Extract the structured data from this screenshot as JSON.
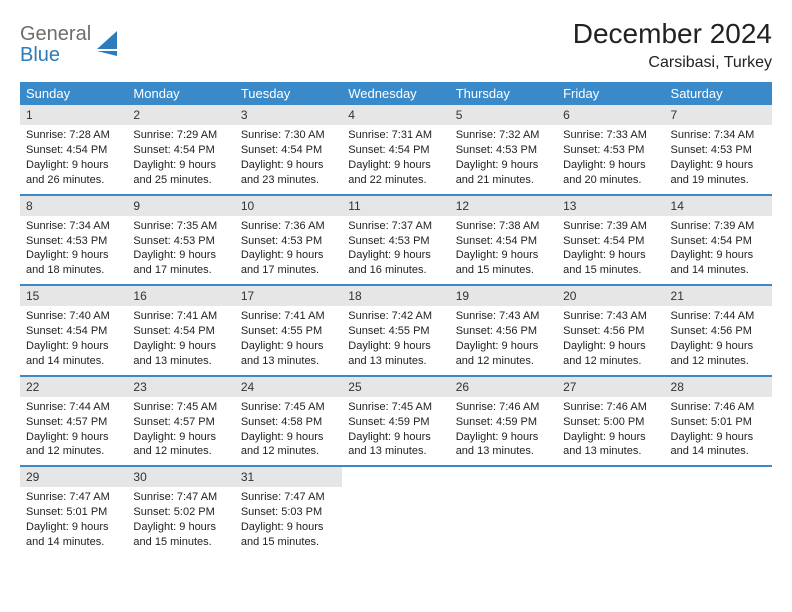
{
  "brand": {
    "word1": "General",
    "word2": "Blue"
  },
  "header": {
    "title": "December 2024",
    "location": "Carsibasi, Turkey"
  },
  "colors": {
    "header_bg": "#3a8aca",
    "header_fg": "#ffffff",
    "daynum_bg": "#e6e6e6",
    "row_divider": "#3a8aca",
    "logo_gray": "#6e6e6e",
    "logo_blue": "#2b7bbd",
    "page_bg": "#ffffff",
    "text": "#222222"
  },
  "weekdays": [
    "Sunday",
    "Monday",
    "Tuesday",
    "Wednesday",
    "Thursday",
    "Friday",
    "Saturday"
  ],
  "weeks": [
    [
      {
        "n": "1",
        "sr": "Sunrise: 7:28 AM",
        "ss": "Sunset: 4:54 PM",
        "d1": "Daylight: 9 hours",
        "d2": "and 26 minutes."
      },
      {
        "n": "2",
        "sr": "Sunrise: 7:29 AM",
        "ss": "Sunset: 4:54 PM",
        "d1": "Daylight: 9 hours",
        "d2": "and 25 minutes."
      },
      {
        "n": "3",
        "sr": "Sunrise: 7:30 AM",
        "ss": "Sunset: 4:54 PM",
        "d1": "Daylight: 9 hours",
        "d2": "and 23 minutes."
      },
      {
        "n": "4",
        "sr": "Sunrise: 7:31 AM",
        "ss": "Sunset: 4:54 PM",
        "d1": "Daylight: 9 hours",
        "d2": "and 22 minutes."
      },
      {
        "n": "5",
        "sr": "Sunrise: 7:32 AM",
        "ss": "Sunset: 4:53 PM",
        "d1": "Daylight: 9 hours",
        "d2": "and 21 minutes."
      },
      {
        "n": "6",
        "sr": "Sunrise: 7:33 AM",
        "ss": "Sunset: 4:53 PM",
        "d1": "Daylight: 9 hours",
        "d2": "and 20 minutes."
      },
      {
        "n": "7",
        "sr": "Sunrise: 7:34 AM",
        "ss": "Sunset: 4:53 PM",
        "d1": "Daylight: 9 hours",
        "d2": "and 19 minutes."
      }
    ],
    [
      {
        "n": "8",
        "sr": "Sunrise: 7:34 AM",
        "ss": "Sunset: 4:53 PM",
        "d1": "Daylight: 9 hours",
        "d2": "and 18 minutes."
      },
      {
        "n": "9",
        "sr": "Sunrise: 7:35 AM",
        "ss": "Sunset: 4:53 PM",
        "d1": "Daylight: 9 hours",
        "d2": "and 17 minutes."
      },
      {
        "n": "10",
        "sr": "Sunrise: 7:36 AM",
        "ss": "Sunset: 4:53 PM",
        "d1": "Daylight: 9 hours",
        "d2": "and 17 minutes."
      },
      {
        "n": "11",
        "sr": "Sunrise: 7:37 AM",
        "ss": "Sunset: 4:53 PM",
        "d1": "Daylight: 9 hours",
        "d2": "and 16 minutes."
      },
      {
        "n": "12",
        "sr": "Sunrise: 7:38 AM",
        "ss": "Sunset: 4:54 PM",
        "d1": "Daylight: 9 hours",
        "d2": "and 15 minutes."
      },
      {
        "n": "13",
        "sr": "Sunrise: 7:39 AM",
        "ss": "Sunset: 4:54 PM",
        "d1": "Daylight: 9 hours",
        "d2": "and 15 minutes."
      },
      {
        "n": "14",
        "sr": "Sunrise: 7:39 AM",
        "ss": "Sunset: 4:54 PM",
        "d1": "Daylight: 9 hours",
        "d2": "and 14 minutes."
      }
    ],
    [
      {
        "n": "15",
        "sr": "Sunrise: 7:40 AM",
        "ss": "Sunset: 4:54 PM",
        "d1": "Daylight: 9 hours",
        "d2": "and 14 minutes."
      },
      {
        "n": "16",
        "sr": "Sunrise: 7:41 AM",
        "ss": "Sunset: 4:54 PM",
        "d1": "Daylight: 9 hours",
        "d2": "and 13 minutes."
      },
      {
        "n": "17",
        "sr": "Sunrise: 7:41 AM",
        "ss": "Sunset: 4:55 PM",
        "d1": "Daylight: 9 hours",
        "d2": "and 13 minutes."
      },
      {
        "n": "18",
        "sr": "Sunrise: 7:42 AM",
        "ss": "Sunset: 4:55 PM",
        "d1": "Daylight: 9 hours",
        "d2": "and 13 minutes."
      },
      {
        "n": "19",
        "sr": "Sunrise: 7:43 AM",
        "ss": "Sunset: 4:56 PM",
        "d1": "Daylight: 9 hours",
        "d2": "and 12 minutes."
      },
      {
        "n": "20",
        "sr": "Sunrise: 7:43 AM",
        "ss": "Sunset: 4:56 PM",
        "d1": "Daylight: 9 hours",
        "d2": "and 12 minutes."
      },
      {
        "n": "21",
        "sr": "Sunrise: 7:44 AM",
        "ss": "Sunset: 4:56 PM",
        "d1": "Daylight: 9 hours",
        "d2": "and 12 minutes."
      }
    ],
    [
      {
        "n": "22",
        "sr": "Sunrise: 7:44 AM",
        "ss": "Sunset: 4:57 PM",
        "d1": "Daylight: 9 hours",
        "d2": "and 12 minutes."
      },
      {
        "n": "23",
        "sr": "Sunrise: 7:45 AM",
        "ss": "Sunset: 4:57 PM",
        "d1": "Daylight: 9 hours",
        "d2": "and 12 minutes."
      },
      {
        "n": "24",
        "sr": "Sunrise: 7:45 AM",
        "ss": "Sunset: 4:58 PM",
        "d1": "Daylight: 9 hours",
        "d2": "and 12 minutes."
      },
      {
        "n": "25",
        "sr": "Sunrise: 7:45 AM",
        "ss": "Sunset: 4:59 PM",
        "d1": "Daylight: 9 hours",
        "d2": "and 13 minutes."
      },
      {
        "n": "26",
        "sr": "Sunrise: 7:46 AM",
        "ss": "Sunset: 4:59 PM",
        "d1": "Daylight: 9 hours",
        "d2": "and 13 minutes."
      },
      {
        "n": "27",
        "sr": "Sunrise: 7:46 AM",
        "ss": "Sunset: 5:00 PM",
        "d1": "Daylight: 9 hours",
        "d2": "and 13 minutes."
      },
      {
        "n": "28",
        "sr": "Sunrise: 7:46 AM",
        "ss": "Sunset: 5:01 PM",
        "d1": "Daylight: 9 hours",
        "d2": "and 14 minutes."
      }
    ],
    [
      {
        "n": "29",
        "sr": "Sunrise: 7:47 AM",
        "ss": "Sunset: 5:01 PM",
        "d1": "Daylight: 9 hours",
        "d2": "and 14 minutes."
      },
      {
        "n": "30",
        "sr": "Sunrise: 7:47 AM",
        "ss": "Sunset: 5:02 PM",
        "d1": "Daylight: 9 hours",
        "d2": "and 15 minutes."
      },
      {
        "n": "31",
        "sr": "Sunrise: 7:47 AM",
        "ss": "Sunset: 5:03 PM",
        "d1": "Daylight: 9 hours",
        "d2": "and 15 minutes."
      },
      {
        "empty": true
      },
      {
        "empty": true
      },
      {
        "empty": true
      },
      {
        "empty": true
      }
    ]
  ]
}
